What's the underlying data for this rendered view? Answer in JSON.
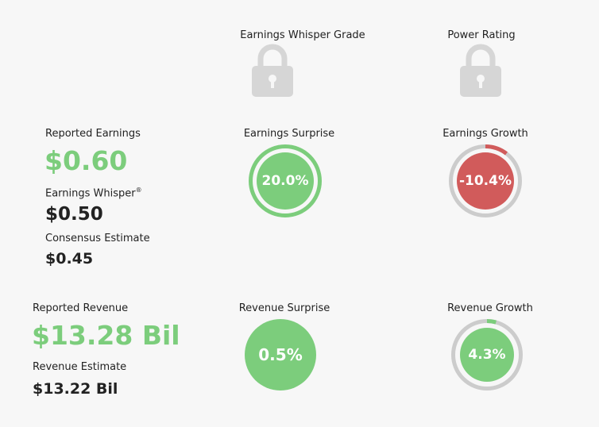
{
  "headers": {
    "whisper_grade": "Earnings Whisper Grade",
    "power_rating": "Power Rating"
  },
  "icons": {
    "whisper_grade_lock": "lock-icon",
    "power_rating_lock": "lock-icon"
  },
  "earnings": {
    "reported_label": "Reported Earnings",
    "reported_value": "$0.60",
    "whisper_label": "Earnings Whisper",
    "whisper_reg": "®",
    "whisper_value": "$0.50",
    "consensus_label": "Consensus Estimate",
    "consensus_value": "$0.45"
  },
  "surprise": {
    "label": "Earnings Surprise",
    "value": "20.0%",
    "fraction": 1.0
  },
  "growth": {
    "label": "Earnings Growth",
    "value": "-10.4%",
    "fraction": 0.104
  },
  "revenue": {
    "reported_label": "Reported Revenue",
    "reported_value": "$13.28 Bil",
    "estimate_label": "Revenue Estimate",
    "estimate_value": "$13.22 Bil"
  },
  "revenue_surprise": {
    "label": "Revenue Surprise",
    "value": "0.5%"
  },
  "revenue_growth": {
    "label": "Revenue Growth",
    "value": "4.3%",
    "fraction": 0.043
  },
  "colors": {
    "green": "#7ccd7c",
    "red": "#d15b5b",
    "track": "#cccccc",
    "lock": "#d6d6d6",
    "background": "#f7f7f7"
  }
}
